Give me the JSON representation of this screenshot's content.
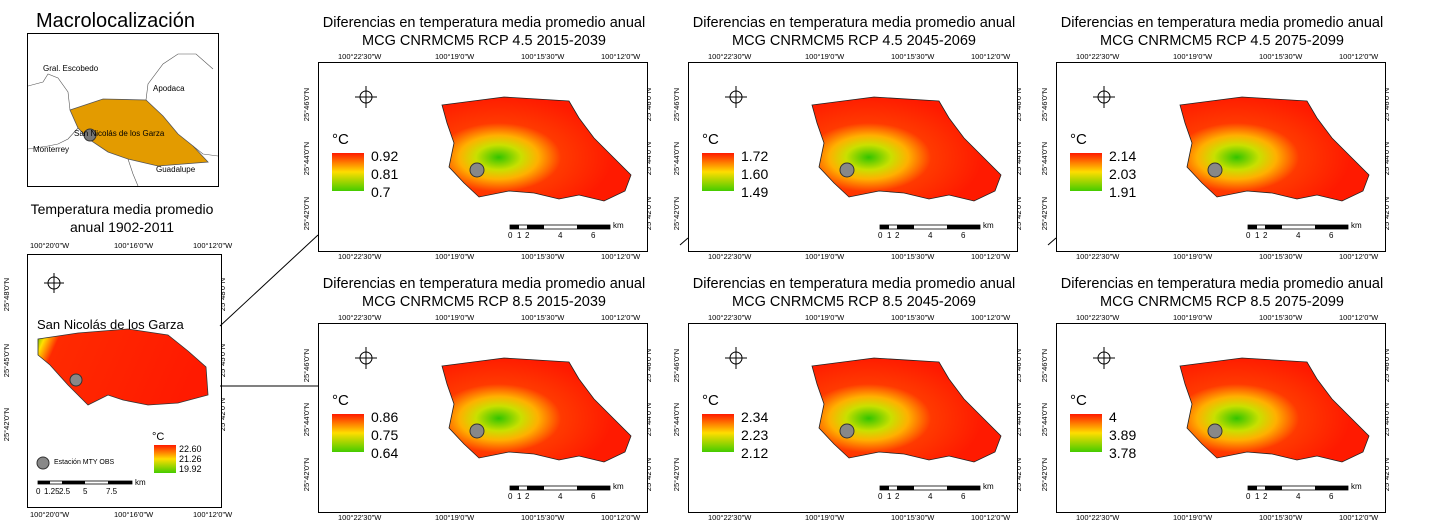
{
  "macro": {
    "title": "Macrolocalización",
    "labels": [
      "Gral. Escobedo",
      "Apodaca",
      "San Nicolás de los Garza",
      "Monterrey",
      "Guadalupe"
    ]
  },
  "base": {
    "title_line1": "Temperatura media promedio",
    "title_line2": "anual 1902-2011",
    "top_ticks": [
      "100°20'0\"W",
      "100°16'0\"W",
      "100°12'0\"W"
    ],
    "bottom_ticks": [
      "100°20'0\"W",
      "100°16'0\"W",
      "100°12'0\"W"
    ],
    "left_ticks": [
      "25°48'0\"N",
      "25°45'0\"N",
      "25°42'0\"N"
    ],
    "right_ticks": [
      "25°48'0\"N",
      "25°45'0\"N",
      "25°42'0\"N"
    ],
    "place": "San Nicolás de los Garza",
    "unit": "°C",
    "legend": [
      "22.60",
      "21.26",
      "19.92"
    ],
    "station": "Estación MTY OBS",
    "scale": [
      "0",
      "1.25",
      "2.5",
      "5",
      "7.5"
    ],
    "scale_unit": "km"
  },
  "panel_common": {
    "top_ticks": [
      "100°22'30\"W",
      "100°19'0\"W",
      "100°15'30\"W",
      "100°12'0\"W"
    ],
    "bottom_ticks": [
      "100°22'30\"W",
      "100°19'0\"W",
      "100°15'30\"W",
      "100°12'0\"W"
    ],
    "left_ticks": [
      "25°46'0\"N",
      "25°44'0\"N",
      "25°42'0\"N"
    ],
    "right_ticks": [
      "25°46'0\"N",
      "25°44'0\"N",
      "25°42'0\"N"
    ],
    "unit": "°C",
    "scale": [
      "0",
      "1",
      "2",
      "4",
      "6"
    ],
    "scale_unit": "km",
    "title_line1": "Diferencias en temperatura media promedio anual"
  },
  "panels": [
    {
      "title_line2": "MCG CNRMCM5 RCP 4.5 2015-2039",
      "legend": [
        "0.92",
        "0.81",
        "0.7"
      ]
    },
    {
      "title_line2": "MCG CNRMCM5 RCP 4.5 2045-2069",
      "legend": [
        "1.72",
        "1.60",
        "1.49"
      ]
    },
    {
      "title_line2": "MCG CNRMCM5 RCP 4.5 2075-2099",
      "legend": [
        "2.14",
        "2.03",
        "1.91"
      ]
    },
    {
      "title_line2": "MCG CNRMCM5 RCP 8.5 2015-2039",
      "legend": [
        "0.86",
        "0.75",
        "0.64"
      ]
    },
    {
      "title_line2": "MCG CNRMCM5 RCP 8.5 2045-2069",
      "legend": [
        "2.34",
        "2.23",
        "2.12"
      ]
    },
    {
      "title_line2": "MCG CNRMCM5 RCP 8.5 2075-2099",
      "legend": [
        "4",
        "3.89",
        "3.78"
      ]
    }
  ],
  "colors": {
    "hot": "#ff1a00",
    "mid": "#ffdd00",
    "cool": "#44cc00",
    "municipality": "#e39b00"
  }
}
